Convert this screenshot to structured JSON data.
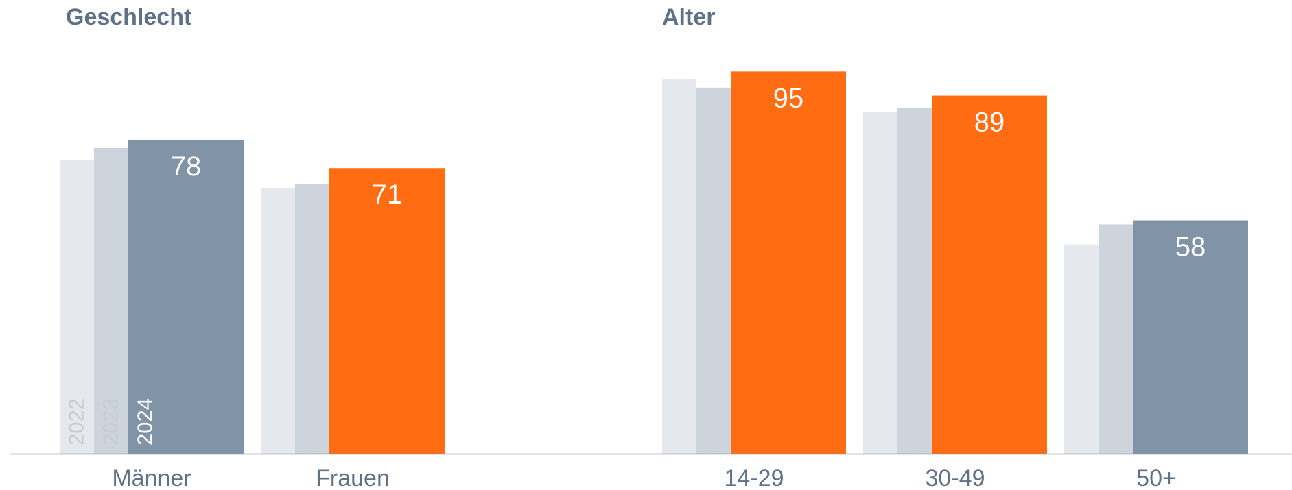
{
  "titles": {
    "left": "Geschlecht",
    "right": "Alter"
  },
  "colors": {
    "y2022": "#e5e8ec",
    "y2023": "#cdd4db",
    "slate": "#8193a7",
    "orange": "#ff6c12",
    "baseline": "#8796a8",
    "category_text": "#5e7187",
    "value_text": "#ffffff"
  },
  "chart_data": [
    {
      "type": "bar",
      "title": "Geschlecht",
      "categories": [
        "Männer",
        "Frauen"
      ],
      "series": [
        {
          "name": "2022",
          "values": [
            73,
            66
          ]
        },
        {
          "name": "2023",
          "values": [
            76,
            67
          ]
        },
        {
          "name": "2024",
          "values": [
            78,
            71
          ],
          "colors": [
            "slate",
            "orange"
          ]
        }
      ],
      "data_labels": [
        "78",
        "71"
      ],
      "ylim": [
        0,
        100
      ],
      "legend_placement": "inside first bar group (rotated year labels)"
    },
    {
      "type": "bar",
      "title": "Alter",
      "categories": [
        "14-29",
        "30-49",
        "50+"
      ],
      "series": [
        {
          "name": "2022",
          "values": [
            93,
            85,
            52
          ]
        },
        {
          "name": "2023",
          "values": [
            91,
            86,
            57
          ]
        },
        {
          "name": "2024",
          "values": [
            95,
            89,
            58
          ],
          "colors": [
            "orange",
            "orange",
            "slate"
          ]
        }
      ],
      "data_labels": [
        "95",
        "89",
        "58"
      ],
      "ylim": [
        0,
        100
      ]
    }
  ]
}
